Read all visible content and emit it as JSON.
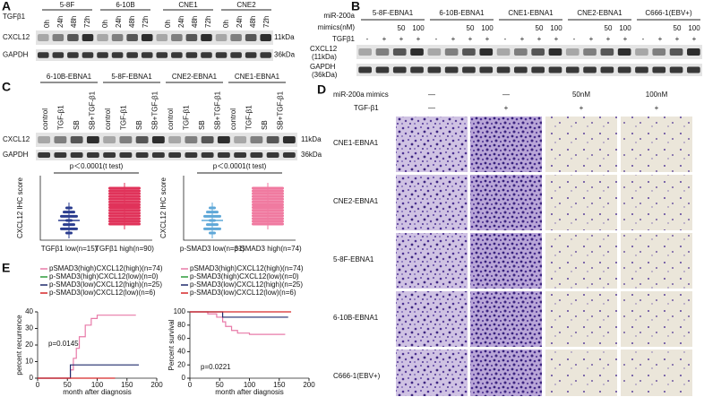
{
  "panels": {
    "A": {
      "label": "A",
      "treatment": "TGFβ1",
      "groups": [
        {
          "name": "5-8F",
          "lanes": [
            "0h",
            "24h",
            "48h",
            "72h"
          ]
        },
        {
          "name": "6-10B",
          "lanes": [
            "0h",
            "24h",
            "48h",
            "72h"
          ]
        },
        {
          "name": "CNE1",
          "lanes": [
            "0h",
            "24h",
            "48h",
            "72h"
          ]
        },
        {
          "name": "CNE2",
          "lanes": [
            "0h",
            "24h",
            "48h",
            "72h"
          ]
        }
      ],
      "rows": [
        {
          "name": "CXCL12",
          "size": "11kDa"
        },
        {
          "name": "GAPDH",
          "size": "36kDa"
        }
      ]
    },
    "B": {
      "label": "B",
      "mir_label": "miR-200a",
      "mimics_label": "mimics(nM)",
      "tgf_label": "TGFβ1",
      "groups": [
        {
          "name": "5-8F-EBNA1",
          "mimics": [
            null,
            null,
            "50",
            "100"
          ],
          "tgf": [
            "-",
            "+",
            "+",
            "+"
          ]
        },
        {
          "name": "6-10B-EBNA1",
          "mimics": [
            null,
            null,
            "50",
            "100"
          ],
          "tgf": [
            "-",
            "+",
            "+",
            "+"
          ]
        },
        {
          "name": "CNE1-EBNA1",
          "mimics": [
            null,
            null,
            "50",
            "100"
          ],
          "tgf": [
            "-",
            "+",
            "+",
            "+"
          ]
        },
        {
          "name": "CNE2-EBNA1",
          "mimics": [
            null,
            null,
            "50",
            "100"
          ],
          "tgf": [
            "-",
            "+",
            "+",
            "+"
          ]
        },
        {
          "name": "C666-1(EBV+)",
          "mimics": [
            null,
            null,
            "50",
            "100"
          ],
          "tgf": [
            "-",
            "+",
            "+",
            "+"
          ]
        }
      ],
      "rows": [
        {
          "name": "CXCL12",
          "size": "(11kDa)"
        },
        {
          "name": "GAPDH",
          "size": "(36kDa)"
        }
      ]
    },
    "C": {
      "label": "C",
      "groups": [
        {
          "name": "6-10B-EBNA1",
          "lanes": [
            "control",
            "TGF-β1",
            "SB",
            "SB+TGF-β1"
          ]
        },
        {
          "name": "5-8F-EBNA1",
          "lanes": [
            "control",
            "TGF-β1",
            "SB",
            "SB+TGF-β1"
          ]
        },
        {
          "name": "CNE2-EBNA1",
          "lanes": [
            "control",
            "TGF-β1",
            "SB",
            "SB+TGF-β1"
          ]
        },
        {
          "name": "CNE1-EBNA1",
          "lanes": [
            "control",
            "TGF-β1",
            "SB",
            "SB+TGF-β1"
          ]
        }
      ],
      "rows": [
        {
          "name": "CXCL12",
          "size": "11kDa"
        },
        {
          "name": "GAPDH",
          "size": "36kDa"
        }
      ],
      "plots": [
        {
          "p_text": "p＜0.0001(t test)",
          "y_label": "CXCL12 IHC score",
          "x_labels": [
            "TGFβ1 low(n=15)",
            "TGFβ1 high(n=90)"
          ],
          "colors": [
            "#2b3d8f",
            "#e0335a"
          ]
        },
        {
          "p_text": "p＜0.0001(t test)",
          "y_label": "CXCL12 IHC score",
          "x_labels": [
            "p-SMAD3 low(n=31)",
            "p-SMAD3 high(n=74)"
          ],
          "colors": [
            "#5fa8d8",
            "#f07aa0"
          ]
        }
      ]
    },
    "D": {
      "label": "D",
      "mimics_label": "miR-200a mimics",
      "mimics": [
        "—",
        "—",
        "50nM",
        "100nM"
      ],
      "tgf_label": "TGF-β1",
      "tgf": [
        "—",
        "+",
        "+",
        "+"
      ],
      "rows": [
        "CNE1-EBNA1",
        "CNE2-EBNA1",
        "5-8F-EBNA1",
        "6-10B-EBNA1",
        "C666-1(EBV+)"
      ]
    },
    "E": {
      "label": "E",
      "charts": [
        {
          "type": "line",
          "y_label": "percent recurrence",
          "x_label": "month after diagnosis",
          "annotation": "p=0.0145",
          "xlim": [
            0,
            200
          ],
          "xticks": [
            0,
            50,
            100,
            150,
            200
          ],
          "ylim": [
            0,
            40
          ],
          "yticks": [
            0,
            10,
            20,
            30,
            40
          ],
          "series": [
            {
              "name": "pSMAD3(high)CXCL12(high)(n=74)",
              "color": "#e87aa8",
              "x": [
                0,
                55,
                55,
                60,
                60,
                65,
                65,
                70,
                70,
                80,
                80,
                90,
                90,
                100,
                100,
                165
              ],
              "y": [
                0,
                0,
                5,
                5,
                12,
                12,
                18,
                18,
                25,
                25,
                32,
                32,
                36,
                36,
                38,
                38
              ]
            },
            {
              "name": "p-SMAD3(high)CXCL12(low)(n=0)",
              "color": "#2e9a3a",
              "x": [],
              "y": []
            },
            {
              "name": "p-SMAD3(low)CXCL12(high)(n=25)",
              "color": "#1f2a6b",
              "x": [
                0,
                55,
                55,
                170
              ],
              "y": [
                0,
                0,
                8,
                8
              ]
            },
            {
              "name": "p-SMAD3(low)CXCL12(low)(n=6)",
              "color": "#d62728",
              "x": [
                0,
                130
              ],
              "y": [
                0,
                0
              ]
            }
          ]
        },
        {
          "type": "line",
          "y_label": "Percent survival",
          "x_label": "month after diagnosis",
          "annotation": "p=0.0221",
          "xlim": [
            0,
            200
          ],
          "xticks": [
            0,
            50,
            100,
            150,
            200
          ],
          "ylim": [
            0,
            100
          ],
          "yticks": [
            0,
            20,
            40,
            60,
            80,
            100
          ],
          "series": [
            {
              "name": "pSMAD3(high)CXCL12(high)(n=74)",
              "color": "#e87aa8",
              "x": [
                0,
                30,
                30,
                45,
                45,
                55,
                55,
                60,
                60,
                70,
                70,
                80,
                80,
                100,
                100,
                160
              ],
              "y": [
                100,
                100,
                97,
                97,
                92,
                92,
                85,
                85,
                78,
                78,
                72,
                72,
                68,
                68,
                66,
                66
              ]
            },
            {
              "name": "p-SMAD3(high)CXCL12(low)(n=0)",
              "color": "#2e9a3a",
              "x": [],
              "y": []
            },
            {
              "name": "p-SMAD3(low)CXCL12(high)(n=25)",
              "color": "#1f2a6b",
              "x": [
                0,
                55,
                55,
                165
              ],
              "y": [
                100,
                100,
                92,
                92
              ]
            },
            {
              "name": "p-SMAD3(low)CXCL12(low)(n=6)",
              "color": "#d62728",
              "x": [
                0,
                170
              ],
              "y": [
                100,
                100
              ]
            }
          ]
        }
      ]
    }
  }
}
